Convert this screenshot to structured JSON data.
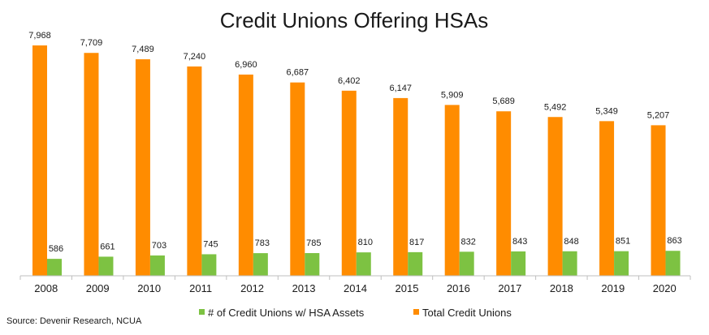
{
  "chart_data": {
    "type": "bar",
    "title": "Credit Unions Offering HSAs",
    "categories": [
      "2008",
      "2009",
      "2010",
      "2011",
      "2012",
      "2013",
      "2014",
      "2015",
      "2016",
      "2017",
      "2018",
      "2019",
      "2020"
    ],
    "series": [
      {
        "name": "Total Credit Unions",
        "color": "#FF8C00",
        "values": [
          7968,
          7709,
          7489,
          7240,
          6960,
          6687,
          6402,
          6147,
          5909,
          5689,
          5492,
          5349,
          5207
        ],
        "labels": [
          "7,968",
          "7,709",
          "7,489",
          "7,240",
          "6,960",
          "6,687",
          "6,402",
          "6,147",
          "5,909",
          "5,689",
          "5,492",
          "5,349",
          "5,207"
        ]
      },
      {
        "name": "# of Credit Unions w/ HSA Assets",
        "color": "#7DC242",
        "values": [
          586,
          661,
          703,
          745,
          783,
          785,
          810,
          817,
          832,
          843,
          848,
          851,
          863
        ],
        "labels": [
          "586",
          "661",
          "703",
          "745",
          "783",
          "785",
          "810",
          "817",
          "832",
          "843",
          "848",
          "851",
          "863"
        ]
      }
    ],
    "ylim": [
      0,
      8000
    ],
    "grid": false,
    "legend_position": "bottom",
    "legend_order": [
      "# of Credit Unions w/ HSA Assets",
      "Total Credit Unions"
    ]
  },
  "source": "Source: Devenir Research, NCUA"
}
